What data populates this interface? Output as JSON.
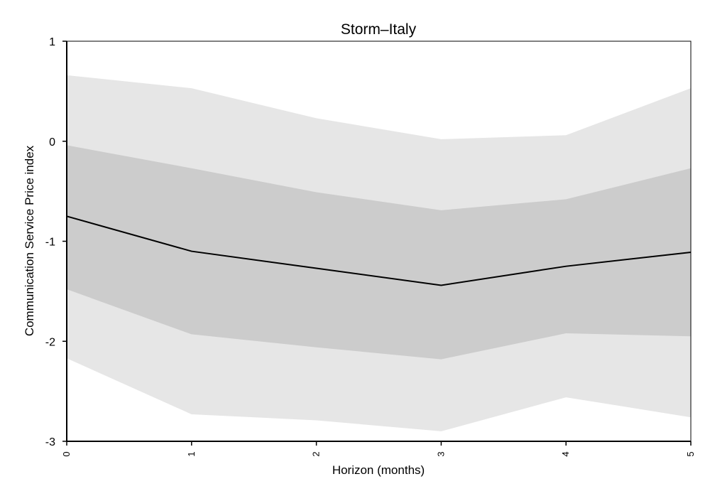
{
  "chart_data": {
    "type": "area",
    "title": "Storm–Italy",
    "xlabel": "Horizon (months)",
    "ylabel": "Communication Service Price index",
    "x": [
      0,
      1,
      2,
      3,
      4,
      5
    ],
    "x_tick_labels": [
      "0",
      "1",
      "2",
      "3",
      "4",
      "5"
    ],
    "y_ticks": [
      1,
      0,
      -1,
      -2,
      -3
    ],
    "y_tick_labels": [
      "1",
      "0",
      "-1",
      "-2",
      "-3"
    ],
    "xlim": [
      0,
      5
    ],
    "ylim": [
      -3,
      1
    ],
    "grid": false,
    "series": [
      {
        "values": [
          -0.75,
          -1.1,
          -1.27,
          -1.44,
          -1.25,
          -1.11
        ]
      }
    ],
    "bands": [
      {
        "lower": [
          -2.17,
          -2.73,
          -2.79,
          -2.9,
          -2.56,
          -2.76
        ],
        "upper": [
          0.66,
          0.53,
          0.23,
          0.02,
          0.06,
          0.53
        ]
      },
      {
        "lower": [
          -1.48,
          -1.93,
          -2.06,
          -2.18,
          -1.92,
          -1.95
        ],
        "upper": [
          -0.04,
          -0.27,
          -0.51,
          -0.69,
          -0.58,
          -0.27
        ]
      }
    ],
    "colors": {
      "outer_band": "#e6e6e6",
      "inner_band": "#cccccc",
      "line": "#000000",
      "axis": "#000000"
    }
  }
}
